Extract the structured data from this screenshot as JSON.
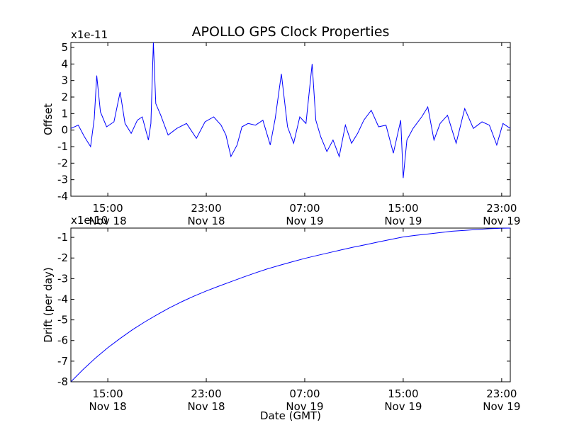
{
  "title": "APOLLO GPS Clock Properties",
  "line_color": "#0000ff",
  "chart_data": [
    {
      "type": "line",
      "name": "offset",
      "ylabel": "Offset",
      "xlabel": "",
      "scale_label": "x1e-11",
      "x_ticks": [
        {
          "x": 15,
          "label": "15:00\nNov 18"
        },
        {
          "x": 23,
          "label": "23:00\nNov 18"
        },
        {
          "x": 31,
          "label": "07:00\nNov 19"
        },
        {
          "x": 39,
          "label": "15:00\nNov 19"
        },
        {
          "x": 47,
          "label": "23:00\nNov 19"
        }
      ],
      "y_ticks": [
        5,
        4,
        3,
        2,
        1,
        0,
        -1,
        -2,
        -3,
        -4
      ],
      "xlim": [
        12,
        47.7
      ],
      "ylim": [
        -4,
        5.3
      ],
      "x": [
        12.0,
        12.6,
        13.1,
        13.6,
        13.9,
        14.1,
        14.4,
        14.9,
        15.5,
        16.0,
        16.4,
        16.9,
        17.4,
        17.8,
        18.3,
        18.5,
        18.7,
        18.9,
        19.3,
        19.9,
        20.6,
        21.4,
        22.2,
        22.9,
        23.6,
        24.2,
        24.6,
        25.0,
        25.5,
        25.9,
        26.4,
        27.0,
        27.6,
        28.2,
        28.6,
        29.1,
        29.6,
        30.1,
        30.6,
        31.1,
        31.6,
        31.9,
        32.3,
        32.8,
        33.3,
        33.8,
        34.3,
        34.8,
        35.3,
        35.8,
        36.4,
        37.0,
        37.6,
        38.2,
        38.8,
        39.0,
        39.3,
        39.8,
        40.5,
        41.0,
        41.5,
        42.0,
        42.6,
        43.3,
        44.0,
        44.7,
        45.4,
        46.0,
        46.6,
        47.1,
        47.7
      ],
      "y": [
        0.1,
        0.3,
        -0.4,
        -1.0,
        0.7,
        3.3,
        1.1,
        0.2,
        0.5,
        2.3,
        0.4,
        -0.2,
        0.6,
        0.8,
        -0.6,
        0.4,
        5.3,
        1.6,
        0.9,
        -0.3,
        0.1,
        0.4,
        -0.5,
        0.5,
        0.8,
        0.3,
        -0.3,
        -1.6,
        -0.9,
        0.2,
        0.4,
        0.3,
        0.6,
        -0.9,
        0.7,
        3.4,
        0.2,
        -0.8,
        0.8,
        0.4,
        4.0,
        0.6,
        -0.4,
        -1.3,
        -0.6,
        -1.6,
        0.3,
        -0.8,
        -0.2,
        0.6,
        1.2,
        0.2,
        0.3,
        -1.4,
        0.6,
        -2.9,
        -0.6,
        0.1,
        0.8,
        1.4,
        -0.6,
        0.4,
        0.9,
        -0.8,
        1.3,
        0.1,
        0.5,
        0.3,
        -0.9,
        0.4,
        0.1
      ]
    },
    {
      "type": "line",
      "name": "drift",
      "ylabel": "Drift (per day)",
      "xlabel": "Date (GMT)",
      "scale_label": "x1e-10",
      "x_ticks": [
        {
          "x": 15,
          "label": "15:00\nNov 18"
        },
        {
          "x": 23,
          "label": "23:00\nNov 18"
        },
        {
          "x": 31,
          "label": "07:00\nNov 19"
        },
        {
          "x": 39,
          "label": "15:00\nNov 19"
        },
        {
          "x": 47,
          "label": "23:00\nNov 19"
        }
      ],
      "y_ticks": [
        -1,
        -2,
        -3,
        -4,
        -5,
        -6,
        -7,
        -8
      ],
      "xlim": [
        12,
        47.7
      ],
      "ylim": [
        -8,
        -0.55
      ],
      "x": [
        12.0,
        13.0,
        14.0,
        15.0,
        16.0,
        17.0,
        18.0,
        19.0,
        20.0,
        21.0,
        22.0,
        23.0,
        24.0,
        25.0,
        26.0,
        27.0,
        28.0,
        29.0,
        30.0,
        31.0,
        32.0,
        33.0,
        34.0,
        35.0,
        36.0,
        37.0,
        38.0,
        39.0,
        40.0,
        41.0,
        42.0,
        43.0,
        44.0,
        45.0,
        46.0,
        47.0,
        47.7
      ],
      "y": [
        -8.0,
        -7.4,
        -6.85,
        -6.35,
        -5.9,
        -5.48,
        -5.1,
        -4.75,
        -4.42,
        -4.12,
        -3.85,
        -3.6,
        -3.37,
        -3.15,
        -2.93,
        -2.72,
        -2.52,
        -2.35,
        -2.18,
        -2.02,
        -1.88,
        -1.74,
        -1.6,
        -1.47,
        -1.35,
        -1.22,
        -1.1,
        -0.98,
        -0.9,
        -0.84,
        -0.77,
        -0.7,
        -0.66,
        -0.62,
        -0.58,
        -0.56,
        -0.55
      ]
    }
  ]
}
